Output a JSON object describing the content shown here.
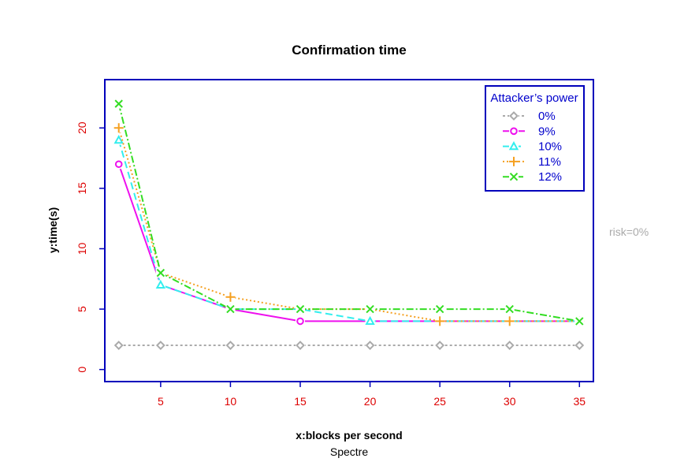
{
  "chart_data": {
    "type": "line",
    "title": "Confirmation time",
    "xlabel": "x:blocks per second",
    "ylabel": "y:time(s)",
    "subtitle": "Spectre",
    "side_note": "risk=0%",
    "x": [
      2,
      5,
      10,
      15,
      20,
      25,
      30,
      35
    ],
    "xlim": [
      1,
      36
    ],
    "ylim": [
      -1,
      24
    ],
    "xticks": [
      5,
      10,
      15,
      20,
      25,
      30,
      35
    ],
    "yticks": [
      0,
      5,
      10,
      15,
      20
    ],
    "grid": false,
    "legend": {
      "title": "Attacker’s power",
      "position": "top-right"
    },
    "series": [
      {
        "name": "0%",
        "values": [
          2,
          2,
          2,
          2,
          2,
          2,
          2,
          2
        ],
        "color": "#aaaaaa",
        "marker": "diamond",
        "dash": "3,3"
      },
      {
        "name": "9%",
        "values": [
          17,
          7,
          5,
          4,
          4,
          4,
          4,
          4
        ],
        "color": "#ee10ee",
        "marker": "circle",
        "dash": ""
      },
      {
        "name": "10%",
        "values": [
          19,
          7,
          5,
          5,
          4,
          4,
          4,
          4
        ],
        "color": "#33eeee",
        "marker": "triangle",
        "dash": "9,5"
      },
      {
        "name": "11%",
        "values": [
          20,
          8,
          6,
          5,
          5,
          4,
          4,
          4
        ],
        "color": "#f5a020",
        "marker": "plus",
        "dash": "2,3"
      },
      {
        "name": "12%",
        "values": [
          22,
          8,
          5,
          5,
          5,
          5,
          5,
          4
        ],
        "color": "#33dd22",
        "marker": "cross",
        "dash": "9,3,2,3"
      }
    ],
    "colors": {
      "axes": "#0000bb",
      "ticks": "#dd0000",
      "legend_text": "#0000cc",
      "side_note": "#aaaaaa"
    }
  }
}
